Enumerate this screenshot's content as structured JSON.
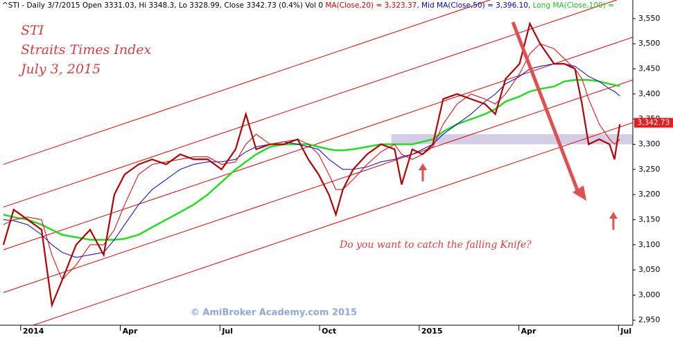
{
  "chart_data": {
    "type": "line",
    "header": [
      {
        "text": "^STI - Daily 3/7/2015 Open 3331.03, Hi 3348.3, Lo 3328.99, Close 3342.73 (0.4%) Vol 0 ",
        "color": "#000000"
      },
      {
        "text": "MA(Close,20) = 3,323.37, ",
        "color": "#d00000"
      },
      {
        "text": "Mid MA(Close,50) = 3,396.10, ",
        "color": "#0000cc"
      },
      {
        "text": "Long MA(Close,100) = ",
        "color": "#22bb22"
      }
    ],
    "title_lines": [
      "STI",
      "Straits Times Index",
      "July 3, 2015"
    ],
    "annotation": "Do you want to catch the falling Knife?",
    "watermark": "© AmiBroker Academy.com 2015",
    "x": [
      -0.52,
      -0.21,
      0.21,
      0.63,
      0.94,
      1.25,
      1.67,
      2.09,
      2.5,
      2.82,
      3.13,
      3.55,
      3.96,
      4.38,
      4.8,
      5.21,
      5.63,
      6.05,
      6.47,
      6.78,
      7.09,
      7.51,
      7.93,
      8.34,
      8.66,
      8.97,
      9.28,
      9.49,
      9.7,
      10.01,
      10.43,
      10.85,
      11.26,
      11.47,
      11.79,
      12.1,
      12.41,
      12.72,
      13.14,
      13.56,
      13.98,
      14.29,
      14.6,
      15.02,
      15.33,
      15.64,
      16.06,
      16.37,
      16.69,
      16.9,
      17.1,
      17.42,
      17.73,
      17.88,
      18.04
    ],
    "series": [
      {
        "name": "Close",
        "color": "#b00000",
        "width": 2.2,
        "values": [
          3100,
          3170,
          3150,
          3130,
          2980,
          3030,
          3100,
          3130,
          3080,
          3200,
          3240,
          3260,
          3270,
          3260,
          3280,
          3270,
          3270,
          3250,
          3290,
          3360,
          3290,
          3300,
          3300,
          3310,
          3270,
          3240,
          3200,
          3160,
          3210,
          3250,
          3280,
          3300,
          3290,
          3220,
          3290,
          3280,
          3300,
          3390,
          3400,
          3390,
          3380,
          3360,
          3430,
          3460,
          3540,
          3500,
          3460,
          3460,
          3450,
          3380,
          3300,
          3310,
          3300,
          3270,
          3340
        ]
      },
      {
        "name": "MA(Close,20)",
        "color": "#e00000",
        "width": 1,
        "values": [
          3140,
          3150,
          3155,
          3150,
          3080,
          3030,
          3060,
          3100,
          3100,
          3130,
          3180,
          3240,
          3260,
          3265,
          3270,
          3275,
          3275,
          3260,
          3265,
          3300,
          3320,
          3300,
          3305,
          3310,
          3300,
          3280,
          3240,
          3210,
          3210,
          3230,
          3260,
          3285,
          3300,
          3280,
          3270,
          3280,
          3295,
          3340,
          3380,
          3400,
          3390,
          3380,
          3400,
          3440,
          3480,
          3500,
          3490,
          3470,
          3450,
          3430,
          3390,
          3340,
          3310,
          3300,
          3310
        ]
      },
      {
        "name": "MA(Close,50)",
        "color": "#0000cc",
        "width": 1,
        "values": [
          3150,
          3148,
          3140,
          3120,
          3100,
          3085,
          3075,
          3080,
          3085,
          3110,
          3140,
          3180,
          3210,
          3230,
          3250,
          3260,
          3265,
          3265,
          3270,
          3285,
          3295,
          3300,
          3305,
          3300,
          3295,
          3290,
          3270,
          3260,
          3250,
          3250,
          3255,
          3265,
          3270,
          3275,
          3280,
          3290,
          3300,
          3320,
          3340,
          3360,
          3385,
          3400,
          3420,
          3435,
          3450,
          3455,
          3460,
          3460,
          3455,
          3445,
          3435,
          3425,
          3410,
          3405,
          3396
        ]
      },
      {
        "name": "MA(Close,100)",
        "color": "#22dd22",
        "width": 2.5,
        "values": [
          3160,
          3155,
          3150,
          3140,
          3130,
          3120,
          3115,
          3110,
          3110,
          3110,
          3112,
          3120,
          3135,
          3150,
          3165,
          3180,
          3200,
          3225,
          3250,
          3265,
          3280,
          3295,
          3300,
          3300,
          3300,
          3295,
          3290,
          3288,
          3288,
          3290,
          3295,
          3300,
          3300,
          3300,
          3300,
          3305,
          3310,
          3325,
          3340,
          3350,
          3360,
          3370,
          3385,
          3395,
          3405,
          3410,
          3415,
          3425,
          3428,
          3428,
          3428,
          3425,
          3420,
          3418,
          3416
        ]
      }
    ],
    "channels": [
      {
        "x": [
          -0.52,
          18.43
        ],
        "values": [
          2920,
          3343
        ],
        "color": "#e00000"
      },
      {
        "x": [
          -0.52,
          18.43
        ],
        "values": [
          3005,
          3428
        ],
        "color": "#e00000"
      },
      {
        "x": [
          -0.52,
          18.43
        ],
        "values": [
          3090,
          3513
        ],
        "color": "#e00000"
      },
      {
        "x": [
          -0.52,
          18.43
        ],
        "values": [
          3175,
          3598
        ],
        "color": "#e00000"
      },
      {
        "x": [
          -0.52,
          18.43
        ],
        "values": [
          3260,
          3683
        ],
        "color": "#e00000"
      }
    ],
    "support_band": {
      "x": [
        11.16,
        19.3
      ],
      "values": [
        3300,
        3320
      ],
      "color": "#c8c0e0"
    },
    "last_price": {
      "value": 3342.73,
      "label": "3,342.73"
    },
    "xlim": [
      -0.56,
      18.43
    ],
    "xticks": [
      {
        "value": 0,
        "label": "2014"
      },
      {
        "value": 3,
        "label": "Apr"
      },
      {
        "value": 6,
        "label": "Jul"
      },
      {
        "value": 9,
        "label": "Oct"
      },
      {
        "value": 12,
        "label": "2015"
      },
      {
        "value": 15,
        "label": "Apr"
      },
      {
        "value": 18,
        "label": "Jul"
      }
    ],
    "ylim": [
      2940,
      3587
    ],
    "yticks": [
      {
        "value": 2950,
        "label": "2,950"
      },
      {
        "value": 3000,
        "label": "3,000"
      },
      {
        "value": 3050,
        "label": "3,050"
      },
      {
        "value": 3100,
        "label": "3,100"
      },
      {
        "value": 3150,
        "label": "3,150"
      },
      {
        "value": 3200,
        "label": "3,200"
      },
      {
        "value": 3250,
        "label": "3,250"
      },
      {
        "value": 3300,
        "label": "3,300"
      },
      {
        "value": 3350,
        "label": "3,350"
      },
      {
        "value": 3400,
        "label": "3,400"
      },
      {
        "value": 3450,
        "label": "3,450"
      },
      {
        "value": 3500,
        "label": "3,500"
      },
      {
        "value": 3550,
        "label": "3,550"
      }
    ],
    "grid": false
  }
}
